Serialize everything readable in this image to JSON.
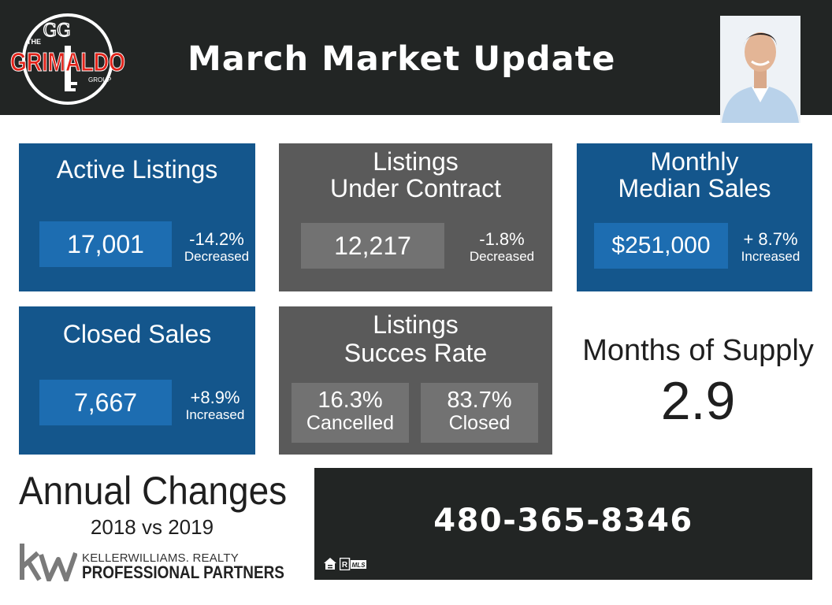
{
  "header": {
    "title": "March Market Update",
    "logo": {
      "line_the": "THE",
      "line_main": "GRIMALDO",
      "line_group": "GROUP",
      "monogram": "GG"
    }
  },
  "cards": {
    "active_listings": {
      "title": "Active Listings",
      "value": "17,001",
      "change": "-14.2%",
      "direction": "Decreased"
    },
    "under_contract": {
      "title_line1": "Listings",
      "title_line2": "Under Contract",
      "value": "12,217",
      "change": "-1.8%",
      "direction": "Decreased"
    },
    "median_sales": {
      "title_line1": "Monthly",
      "title_line2": "Median Sales",
      "value": "$251,000",
      "change": "+ 8.7%",
      "direction": "Increased"
    },
    "closed_sales": {
      "title": "Closed Sales",
      "value": "7,667",
      "change": "+8.9%",
      "direction": "Increased"
    },
    "success_rate": {
      "title_line1": "Listings",
      "title_line2": "Succes Rate",
      "cancelled_pct": "16.3%",
      "cancelled_label": "Cancelled",
      "closed_pct": "83.7%",
      "closed_label": "Closed"
    }
  },
  "supply": {
    "label": "Months of Supply",
    "value": "2.9"
  },
  "annual": {
    "title": "Annual Changes",
    "subtitle": "2018 vs 2019"
  },
  "brokerage": {
    "line1": "KELLERWILLIAMS. REALTY",
    "line2": "PROFESSIONAL PARTNERS"
  },
  "contact": {
    "phone": "480-365-8346",
    "mls_text": "MLS"
  },
  "colors": {
    "header_bg": "#222524",
    "card_blue": "#14568c",
    "card_blue_box": "#1d6db1",
    "card_gray": "#5a5a5a",
    "card_gray_box": "#727272",
    "logo_red": "#e2231a"
  },
  "icons": [
    "grimaldo-logo",
    "agent-portrait",
    "kw-logo-mark",
    "equal-housing-icon",
    "realtor-mls-icon"
  ]
}
